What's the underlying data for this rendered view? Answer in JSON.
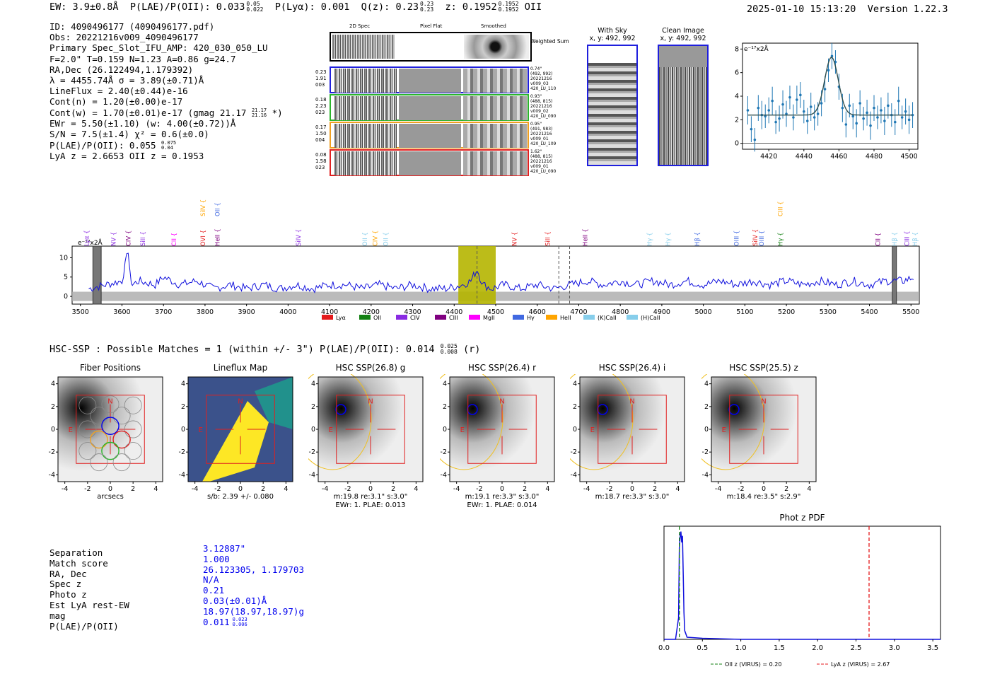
{
  "header": {
    "ew": "EW: 3.9±0.8Å",
    "plae_label": "P(LAE)/P(OII): 0.033",
    "plae_hi": "0.05",
    "plae_lo": "0.022",
    "plya": "P(Lyα): 0.001",
    "qz_label": "Q(z): 0.23",
    "qz_hi": "0.23",
    "qz_lo": "0.23",
    "z_label": "z: 0.1952",
    "z_hi": "0.1952",
    "z_lo": "0.1952",
    "z_line": "OII",
    "timestamp": "2025-01-10 15:13:20",
    "version": "Version 1.22.3"
  },
  "info": {
    "id": "ID: 4090496177 (4090496177.pdf)",
    "obs": "Obs: 20221216v009_4090496177",
    "primary": "Primary Spec_Slot_IFU_AMP: 420_030_050_LU",
    "params": "F=2.0\"  T=0.159  N=1.23  A=0.86  g=24.7",
    "radec": "RA,Dec (26.122494,1.179392)",
    "lambda": "λ = 4455.74Å  σ = 3.89(±0.71)Å",
    "lineflux": "LineFlux = 2.40(±0.44)e-16",
    "contn": "Cont(n) = 1.20(±0.00)e-17",
    "contw": "Cont(w) = 1.70(±0.01)e-17 (gmag 21.17",
    "contw_hi": "21.17",
    "contw_lo": "21.16",
    "contw_end": "*)",
    "ewr": "EWr = 5.50(±1.10) (w: 4.00(±0.72))Å",
    "sn": "S/N = 7.5(±1.4)  χ² = 0.6(±0.0)",
    "plae": "P(LAE)/P(OII): 0.055",
    "plae_hi": "0.075",
    "plae_lo": "0.04",
    "lyaz": "LyA z = 2.6653  OII z = 0.1953"
  },
  "cutouts": {
    "col_2d": "2D Spec",
    "col_flat": "Pixel Flat",
    "col_smooth": "Smoothed",
    "weighted": "Weighted Sum",
    "rows": [
      {
        "left": [
          "0.23",
          "1.91",
          "003"
        ],
        "right": [
          "0.74\"",
          "(492, 992)",
          "20221216",
          "v009_03",
          "420_LU_110"
        ],
        "color": "#1f1fdd"
      },
      {
        "left": [
          "0.18",
          "2.23",
          "023"
        ],
        "right": [
          "0.93\"",
          "(488, 815)",
          "20221216",
          "v009_02",
          "420_LU_090"
        ],
        "color": "#2bb52b"
      },
      {
        "left": [
          "0.17",
          "1.50",
          "004"
        ],
        "right": [
          "0.95\"",
          "(491, 983)",
          "20221216",
          "v009_01",
          "420_LU_109"
        ],
        "color": "#f0a020"
      },
      {
        "left": [
          "0.08",
          "1.58",
          "023"
        ],
        "right": [
          "1.62\"",
          "(488, 815)",
          "20221216",
          "v009_01",
          "420_LU_090"
        ],
        "color": "#e02020"
      }
    ]
  },
  "sky": {
    "with_sky_title": "With Sky",
    "with_sky_xy": "x, y: 492, 992",
    "clean_title": "Clean Image",
    "clean_xy": "x, y: 492, 992"
  },
  "chart_data": [
    {
      "id": "line_fit",
      "type": "scatter",
      "title": "",
      "ylabel": "e⁻¹⁷x2Å",
      "xlim": [
        4405,
        4505
      ],
      "ylim": [
        -0.5,
        8.5
      ],
      "xticks": [
        4420,
        4440,
        4460,
        4480,
        4500
      ],
      "yticks": [
        0,
        2,
        4,
        6,
        8
      ],
      "fit": {
        "continuum": 2.4,
        "amplitude": 4.9,
        "center": 4455.74,
        "sigma": 3.89
      },
      "x": [
        4408,
        4410,
        4412,
        4414,
        4416,
        4418,
        4420,
        4422,
        4424,
        4426,
        4428,
        4430,
        4432,
        4434,
        4436,
        4438,
        4440,
        4442,
        4444,
        4446,
        4448,
        4450,
        4452,
        4454,
        4456,
        4458,
        4460,
        4462,
        4464,
        4466,
        4468,
        4470,
        4472,
        4474,
        4476,
        4478,
        4480,
        4482,
        4484,
        4486,
        4488,
        4490,
        4492,
        4494,
        4496,
        4498,
        4500,
        4502
      ],
      "y": [
        2.8,
        1.2,
        0.3,
        3.0,
        2.4,
        2.3,
        2.8,
        3.6,
        1.8,
        2.1,
        3.3,
        2.5,
        3.9,
        2.2,
        3.7,
        4.1,
        2.7,
        1.9,
        3.1,
        2.2,
        2.5,
        3.4,
        4.6,
        6.2,
        7.4,
        6.9,
        4.8,
        3.0,
        1.6,
        3.2,
        2.3,
        1.7,
        3.4,
        2.1,
        2.6,
        1.5,
        3.0,
        2.2,
        2.8,
        1.9,
        3.2,
        2.4,
        1.8,
        3.6,
        2.2,
        2.7,
        2.0,
        2.4
      ],
      "yerr": [
        1.2,
        1.1,
        1.0,
        1.1,
        1.2,
        1.0,
        1.1,
        1.2,
        1.0,
        1.1,
        1.2,
        1.1,
        1.0,
        1.1,
        1.2,
        1.1,
        1.0,
        1.1,
        1.2,
        1.1,
        1.0,
        1.1,
        1.1,
        1.0,
        1.1,
        1.0,
        1.1,
        1.2,
        1.1,
        1.0,
        1.1,
        1.2,
        1.1,
        1.0,
        1.1,
        1.2,
        1.1,
        1.0,
        1.1,
        1.2,
        1.1,
        1.0,
        1.1,
        1.2,
        1.0,
        1.1,
        1.2,
        1.1
      ]
    },
    {
      "id": "full_spectrum",
      "type": "line",
      "ylabel": "e⁻¹⁷x2Å",
      "xlim": [
        3480,
        5520
      ],
      "ylim": [
        -2,
        13
      ],
      "xticks": [
        3500,
        3600,
        3700,
        3800,
        3900,
        4000,
        4100,
        4200,
        4300,
        4400,
        4500,
        4600,
        4700,
        4800,
        4900,
        5000,
        5100,
        5200,
        5300,
        5400,
        5500
      ],
      "yticks": [
        0,
        5,
        10
      ],
      "x": [
        3520,
        3560,
        3600,
        3615,
        3620,
        3625,
        3640,
        3680,
        3700,
        3740,
        3780,
        3820,
        3860,
        3900,
        3940,
        3980,
        4020,
        4060,
        4100,
        4140,
        4180,
        4220,
        4260,
        4300,
        4340,
        4380,
        4420,
        4440,
        4450,
        4456,
        4462,
        4470,
        4490,
        4520,
        4560,
        4600,
        4640,
        4680,
        4720,
        4760,
        4800,
        4840,
        4880,
        4920,
        4960,
        5000,
        5040,
        5080,
        5120,
        5160,
        5200,
        5240,
        5280,
        5320,
        5360,
        5400,
        5440,
        5480,
        5510
      ],
      "y": [
        2,
        3,
        4,
        12,
        5,
        3,
        4,
        3,
        5,
        3,
        4,
        2,
        3,
        2,
        3,
        2,
        3,
        2,
        3,
        3,
        2,
        3,
        2,
        3,
        2,
        2,
        3,
        4,
        6,
        7,
        5,
        3,
        2,
        3,
        2,
        3,
        2,
        3,
        4,
        3,
        4,
        3,
        4,
        3,
        4,
        3,
        4,
        3,
        4,
        3,
        4,
        3,
        4,
        3,
        4,
        3,
        4,
        4,
        5
      ],
      "highlight_band": [
        4410,
        4500
      ],
      "dashed_lines": [
        4455,
        4652,
        4678
      ],
      "masked_bands": [
        [
          3530,
          3550
        ],
        [
          5455,
          5465
        ]
      ],
      "legend": [
        {
          "label": "Lyα",
          "color": "#e41a1c"
        },
        {
          "label": "OII",
          "color": "#138013"
        },
        {
          "label": "CIV",
          "color": "#8a2be2"
        },
        {
          "label": "CIII",
          "color": "#800080"
        },
        {
          "label": "MgII",
          "color": "#ff00ff"
        },
        {
          "label": "Hγ",
          "color": "#4169e1"
        },
        {
          "label": "HeII",
          "color": "#ffa500"
        },
        {
          "label": "(K)CaII",
          "color": "#87ceeb"
        },
        {
          "label": "(H)CaII",
          "color": "#87ceeb"
        }
      ],
      "line_labels": [
        {
          "label": "Lyα",
          "x": 3515,
          "color": "#8a2be2",
          "row": 2
        },
        {
          "label": "NV",
          "x": 3580,
          "color": "#8a2be2",
          "row": 2
        },
        {
          "label": "CIV",
          "x": 3615,
          "color": "#800080",
          "row": 2
        },
        {
          "label": "SiII",
          "x": 3650,
          "color": "#8a2be2",
          "row": 2
        },
        {
          "label": "CII",
          "x": 3725,
          "color": "#ff00ff",
          "row": 2
        },
        {
          "label": "SiIV",
          "x": 3795,
          "color": "#ffa500",
          "row": 0
        },
        {
          "label": "OII",
          "x": 3830,
          "color": "#4169e1",
          "row": 0
        },
        {
          "label": "OVI",
          "x": 3795,
          "color": "#e41a1c",
          "row": 2
        },
        {
          "label": "HeII",
          "x": 3830,
          "color": "#800080",
          "row": 2
        },
        {
          "label": "SiIV",
          "x": 4025,
          "color": "#8a2be2",
          "row": 2
        },
        {
          "label": "OII",
          "x": 4185,
          "color": "#87ceeb",
          "row": 2
        },
        {
          "label": "CIV",
          "x": 4210,
          "color": "#ffa500",
          "row": 2
        },
        {
          "label": "OII",
          "x": 4235,
          "color": "#87ceeb",
          "row": 2
        },
        {
          "label": "NV",
          "x": 4545,
          "color": "#e41a1c",
          "row": 2
        },
        {
          "label": "SiII",
          "x": 4625,
          "color": "#e41a1c",
          "row": 2
        },
        {
          "label": "HeII",
          "x": 4715,
          "color": "#800080",
          "row": 2
        },
        {
          "label": "Hγ",
          "x": 4870,
          "color": "#87ceeb",
          "row": 2
        },
        {
          "label": "Hγ",
          "x": 4915,
          "color": "#87ceeb",
          "row": 2
        },
        {
          "label": "Hβ",
          "x": 4985,
          "color": "#4169e1",
          "row": 2
        },
        {
          "label": "OIII",
          "x": 5080,
          "color": "#4169e1",
          "row": 2
        },
        {
          "label": "SiIV",
          "x": 5125,
          "color": "#e41a1c",
          "row": 2
        },
        {
          "label": "OIII",
          "x": 5140,
          "color": "#4169e1",
          "row": 2
        },
        {
          "label": "CIII",
          "x": 5185,
          "color": "#ffa500",
          "row": 0
        },
        {
          "label": "Hγ",
          "x": 5185,
          "color": "#138013",
          "row": 2
        },
        {
          "label": "CII",
          "x": 5420,
          "color": "#800080",
          "row": 2
        },
        {
          "label": "Hβ",
          "x": 5460,
          "color": "#87ceeb",
          "row": 2
        },
        {
          "label": "CIII",
          "x": 5490,
          "color": "#8a2be2",
          "row": 2
        },
        {
          "label": "Hβ",
          "x": 5510,
          "color": "#87ceeb",
          "row": 2
        }
      ]
    },
    {
      "id": "photz_pdf",
      "type": "line",
      "title": "Phot z PDF",
      "xlim": [
        0,
        3.6
      ],
      "ylim": [
        0,
        1.05
      ],
      "xticks": [
        0.0,
        0.5,
        1.0,
        1.5,
        2.0,
        2.5,
        3.0,
        3.5
      ],
      "x": [
        0.0,
        0.15,
        0.19,
        0.2,
        0.21,
        0.22,
        0.23,
        0.24,
        0.25,
        0.26,
        0.27,
        0.3,
        0.5,
        1.0,
        2.0,
        3.0,
        3.6
      ],
      "y": [
        0.0,
        0.0,
        0.2,
        0.85,
        0.95,
        1.0,
        0.9,
        0.96,
        0.6,
        0.25,
        0.08,
        0.02,
        0.01,
        0.0,
        0.0,
        0.0,
        0.0
      ],
      "vlines": [
        {
          "x": 0.2,
          "label": "OII z (VIRUS) = 0.20",
          "color": "#138013"
        },
        {
          "x": 2.67,
          "label": "LyA z (VIRUS) = 2.67",
          "color": "#e41a1c"
        }
      ]
    }
  ],
  "hsc": {
    "summary": "HSC-SSP : Possible Matches = 1 (within +/- 3\")  P(LAE)/P(OII): 0.014",
    "summary_hi": "0.025",
    "summary_lo": "0.008",
    "summary_band": "(r)",
    "panels": [
      {
        "title": "Fiber Positions",
        "cap1": "arcsecs",
        "cap2": ""
      },
      {
        "title": "Lineflux Map",
        "cap1": "s/b: 2.39 +/- 0.080",
        "cap2": ""
      },
      {
        "title": "HSC SSP(26.8) g",
        "cap1": "m:19.8  re:3.1\"  s:3.0\"",
        "cap2": "EWr: 1. PLAE: 0.013"
      },
      {
        "title": "HSC SSP(26.4) r",
        "cap1": "m:19.1  re:3.3\"  s:3.0\"",
        "cap2": "EWr: 1. PLAE: 0.014"
      },
      {
        "title": "HSC SSP(26.4) i",
        "cap1": "m:18.7  re:3.3\"  s:3.0\"",
        "cap2": ""
      },
      {
        "title": "HSC SSP(25.5) z",
        "cap1": "m:18.4  re:3.5\"  s:2.9\"",
        "cap2": ""
      }
    ],
    "ticks": [
      "-4",
      "-2",
      "0",
      "2",
      "4"
    ],
    "north": "N",
    "east": "E"
  },
  "match": {
    "labels": [
      "Separation",
      "Match score",
      "RA, Dec",
      "Spec z",
      "Photo z",
      "Est LyA rest-EW",
      "mag",
      "P(LAE)/P(OII)"
    ],
    "values": [
      "3.12887\"",
      "1.000",
      "26.123305, 1.179703",
      "N/A",
      "0.21",
      "0.03(±0.01)Å",
      "18.97(18.97,18.97)g",
      "0.011"
    ],
    "plae_hi": "0.023",
    "plae_lo": "0.006"
  }
}
